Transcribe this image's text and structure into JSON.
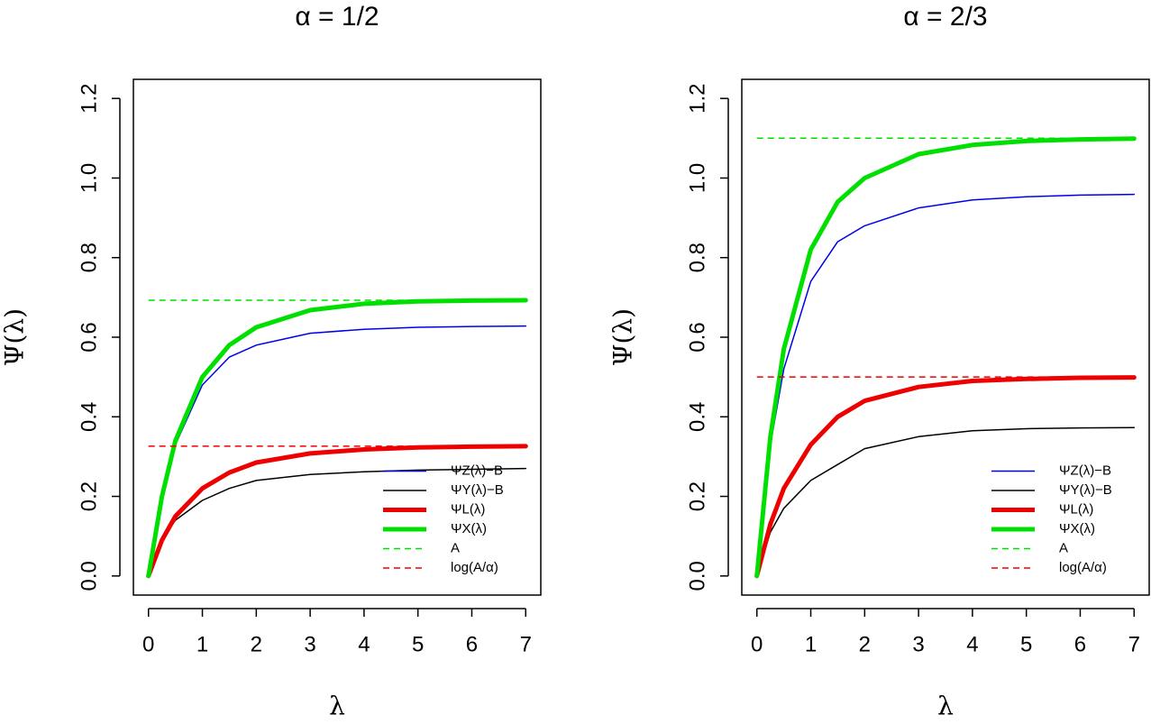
{
  "chart_data": [
    {
      "type": "line",
      "title": "α = 1/2",
      "x_label": "λ",
      "y_label": "Ψ(λ)",
      "x": [
        0,
        0.25,
        0.5,
        1,
        1.5,
        2,
        3,
        4,
        5,
        6,
        7
      ],
      "series": [
        {
          "name": "ΨZ(λ)−B",
          "color": "#0000ee",
          "width": 1.5,
          "dash": false,
          "values": [
            0,
            0.19,
            0.33,
            0.48,
            0.55,
            0.58,
            0.61,
            0.62,
            0.625,
            0.627,
            0.628
          ]
        },
        {
          "name": "ΨY(λ)−B",
          "color": "#000000",
          "width": 1.5,
          "dash": false,
          "values": [
            0,
            0.09,
            0.14,
            0.19,
            0.22,
            0.24,
            0.255,
            0.262,
            0.266,
            0.268,
            0.27
          ]
        },
        {
          "name": "ΨL(λ)",
          "color": "#ee0000",
          "width": 5,
          "dash": false,
          "values": [
            0,
            0.09,
            0.15,
            0.22,
            0.26,
            0.285,
            0.308,
            0.318,
            0.323,
            0.325,
            0.326
          ]
        },
        {
          "name": "ΨX(λ)",
          "color": "#00e000",
          "width": 5,
          "dash": false,
          "values": [
            0,
            0.2,
            0.34,
            0.5,
            0.58,
            0.625,
            0.668,
            0.684,
            0.69,
            0.692,
            0.693
          ]
        },
        {
          "name": "A",
          "color": "#00e000",
          "width": 1.5,
          "dash": true,
          "values": [
            0.693,
            0.693,
            0.693,
            0.693,
            0.693,
            0.693,
            0.693,
            0.693,
            0.693,
            0.693,
            0.693
          ]
        },
        {
          "name": "log(A/α)",
          "color": "#ee0000",
          "width": 1.5,
          "dash": true,
          "values": [
            0.326,
            0.326,
            0.326,
            0.326,
            0.326,
            0.326,
            0.326,
            0.326,
            0.326,
            0.326,
            0.326
          ]
        }
      ],
      "xlim": [
        -0.28,
        7.28
      ],
      "ylim": [
        -0.048,
        1.248
      ],
      "xticks": [
        0,
        1,
        2,
        3,
        4,
        5,
        6,
        7
      ],
      "yticks": [
        {
          "value": 0,
          "label": "0.0"
        },
        {
          "value": 0.2,
          "label": "0.2"
        },
        0.4,
        0.6,
        0.8,
        {
          "value": 1,
          "label": "1.0"
        },
        1.2
      ],
      "legend": "bottom-right"
    },
    {
      "type": "line",
      "title": "α = 2/3",
      "x_label": "λ",
      "y_label": "Ψ(λ)",
      "x": [
        0,
        0.25,
        0.5,
        1,
        1.5,
        2,
        3,
        4,
        5,
        6,
        7
      ],
      "series": [
        {
          "name": "ΨZ(λ)−B",
          "color": "#0000ee",
          "width": 1.5,
          "dash": false,
          "values": [
            0,
            0.33,
            0.52,
            0.74,
            0.84,
            0.88,
            0.925,
            0.945,
            0.953,
            0.957,
            0.959
          ]
        },
        {
          "name": "ΨY(λ)−B",
          "color": "#000000",
          "width": 1.5,
          "dash": false,
          "values": [
            0,
            0.11,
            0.17,
            0.24,
            0.28,
            0.32,
            0.35,
            0.365,
            0.37,
            0.372,
            0.373
          ]
        },
        {
          "name": "ΨL(λ)",
          "color": "#ee0000",
          "width": 5,
          "dash": false,
          "values": [
            0,
            0.13,
            0.22,
            0.33,
            0.4,
            0.44,
            0.475,
            0.49,
            0.495,
            0.498,
            0.499
          ]
        },
        {
          "name": "ΨX(λ)",
          "color": "#00e000",
          "width": 5,
          "dash": false,
          "values": [
            0,
            0.35,
            0.57,
            0.82,
            0.94,
            1.0,
            1.06,
            1.083,
            1.093,
            1.097,
            1.099
          ]
        },
        {
          "name": "A",
          "color": "#00e000",
          "width": 1.5,
          "dash": true,
          "values": [
            1.1,
            1.1,
            1.1,
            1.1,
            1.1,
            1.1,
            1.1,
            1.1,
            1.1,
            1.1,
            1.1
          ]
        },
        {
          "name": "log(A/α)",
          "color": "#ee0000",
          "width": 1.5,
          "dash": true,
          "values": [
            0.5,
            0.5,
            0.5,
            0.5,
            0.5,
            0.5,
            0.5,
            0.5,
            0.5,
            0.5,
            0.5
          ]
        }
      ],
      "xlim": [
        -0.28,
        7.28
      ],
      "ylim": [
        -0.048,
        1.248
      ],
      "xticks": [
        0,
        1,
        2,
        3,
        4,
        5,
        6,
        7
      ],
      "yticks": [
        {
          "value": 0,
          "label": "0.0"
        },
        {
          "value": 0.2,
          "label": "0.2"
        },
        0.4,
        0.6,
        0.8,
        {
          "value": 1,
          "label": "1.0"
        },
        1.2
      ],
      "legend": "bottom-right"
    }
  ]
}
